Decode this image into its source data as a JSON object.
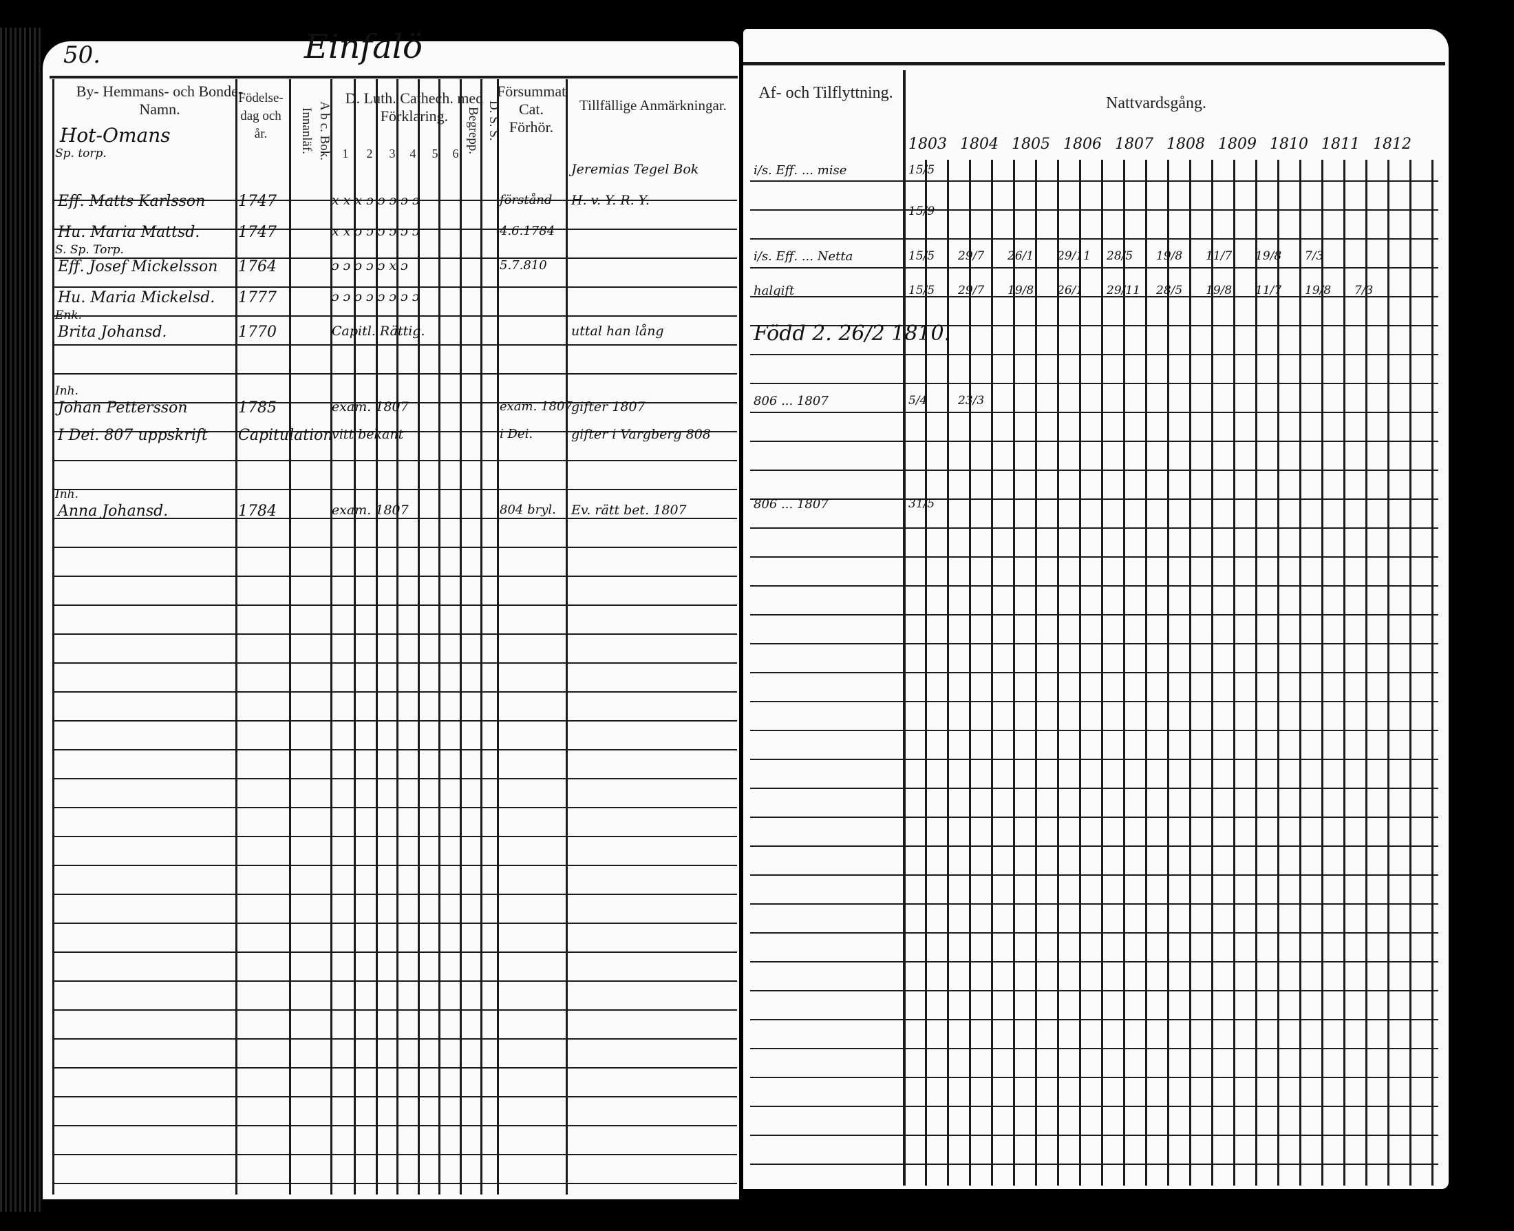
{
  "left_page": {
    "page_number": "50.",
    "place_title": "Einfalö",
    "headers": {
      "name": "By- Hemmans- och Bonde-Namn.",
      "birth": "Födelse-dag och år.",
      "abc": "A b c. Bok. Innanläf.",
      "catechism": "D. Luth. Cathech. med Förklaring.",
      "catechism_subcols": [
        "1",
        "2",
        "3",
        "4",
        "5",
        "6"
      ],
      "begrepp": "Begrepp.",
      "dss": "D. S. S.",
      "forsummat": "Försummat Cat. Förhör.",
      "remarks": "Tillfällige Anmärkningar."
    },
    "farm_name": "Hot-Omans",
    "rows": [
      {
        "label": "Sp. torp.",
        "name": "",
        "birth": "",
        "marks": "",
        "forsummat": "",
        "remark": "Jeremias Tegel Bok"
      },
      {
        "label": "",
        "name": "Eff. Matts Karlsson",
        "birth": "1747",
        "marks": "x x x ɔ ɔ ɔ ɔ ɔ",
        "forsummat": "förstånd",
        "remark": "H. v. Y. R. Y."
      },
      {
        "label": "",
        "name": "Hu. Maria Mattsd.",
        "birth": "1747",
        "marks": "x x ɔ ɔ ɔ ɔ ɔ ɔ",
        "forsummat": "4.6.1784",
        "remark": ""
      },
      {
        "label": "S. Sp. Torp.",
        "name": "Eff. Josef Mickelsson",
        "birth": "1764",
        "marks": "ɔ ɔ ɔ ɔ ɔ x ɔ",
        "forsummat": "5.7.810",
        "remark": ""
      },
      {
        "label": "",
        "name": "Hu. Maria Mickelsd.",
        "birth": "1777",
        "marks": "ɔ ɔ ɔ ɔ ɔ ɔ ɔ ɔ",
        "forsummat": "",
        "remark": ""
      },
      {
        "label": "Enk.",
        "name": "Brita Johansd.",
        "birth": "1770",
        "marks": "Capitl. Rättig.",
        "forsummat": "",
        "remark": "uttal han lång"
      },
      {
        "label": "Inh.",
        "name": "Johan Pettersson",
        "birth": "1785",
        "marks": "exam. 1807",
        "forsummat": "exam. 1807",
        "remark": "gifter 1807"
      },
      {
        "label": "",
        "name": "I Dei. 807 uppskrift",
        "birth": "Capitulation",
        "marks": "vitt bekant",
        "forsummat": "i Dei.",
        "remark": "gifter i Vargberg 808"
      },
      {
        "label": "Inh.",
        "name": "Anna Johansd.",
        "birth": "1784",
        "marks": "exam. 1807",
        "forsummat": "804 bryl.",
        "remark": "Ev. rätt bet. 1807"
      }
    ]
  },
  "right_page": {
    "headers": {
      "moving": "Af- och Tilflyttning.",
      "communion": "Nattvardsgång."
    },
    "years": [
      "1803",
      "1804",
      "1805",
      "1806",
      "1807",
      "1808",
      "1809",
      "1810",
      "1811",
      "1812"
    ],
    "entries": [
      {
        "moving": "i/s. Eff. ... mise",
        "dates": [
          "15/5"
        ]
      },
      {
        "moving": "",
        "dates": [
          "15/9"
        ]
      },
      {
        "moving": "i/s. Eff. ... Netta",
        "dates": [
          "15/5",
          "29/7",
          "26/1",
          "29/11",
          "28/5",
          "19/8",
          "11/7",
          "19/8",
          "7/3"
        ]
      },
      {
        "moving": "halgift",
        "dates": [
          "15/5",
          "29/7",
          "19/8",
          "26/1",
          "29/11",
          "28/5",
          "19/8",
          "11/7",
          "19/8",
          "7/3"
        ]
      },
      {
        "moving": "Född 2. 26/2 1810.",
        "dates": []
      },
      {
        "moving": "806 ... 1807",
        "dates": [
          "5/4",
          "23/3"
        ]
      },
      {
        "moving": "806 ... 1807",
        "dates": [
          "31/5"
        ]
      }
    ]
  }
}
